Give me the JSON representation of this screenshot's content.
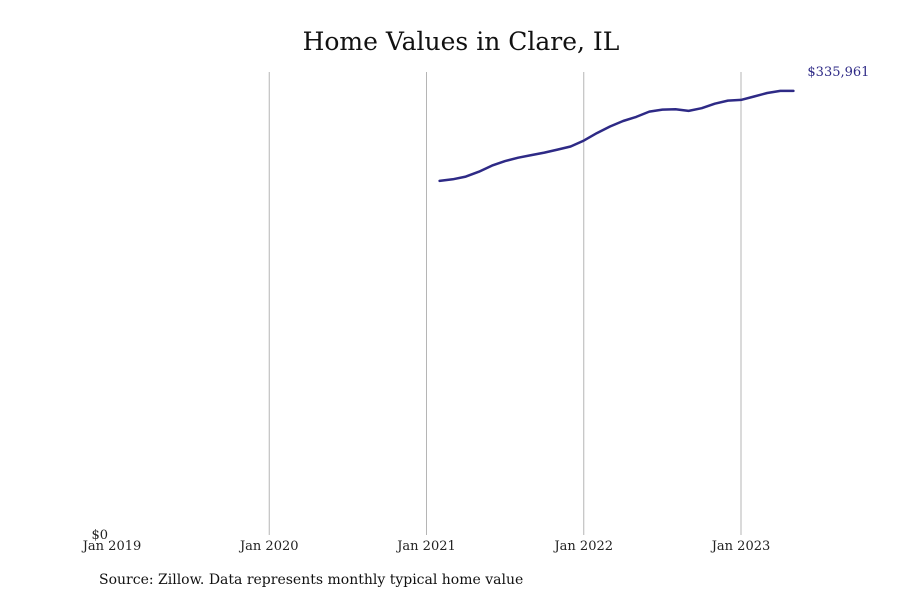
{
  "chart_data": {
    "type": "line",
    "title": "Home Values in Clare, IL",
    "xlabel": "",
    "ylabel": "",
    "x_ticks": [
      "Jan 2019",
      "Jan 2020",
      "Jan 2021",
      "Jan 2022",
      "Jan 2023"
    ],
    "y_ticks": [
      "$0"
    ],
    "xlim": [
      "2019-01",
      "2023-07"
    ],
    "ylim": [
      0,
      340000
    ],
    "grid": "vertical",
    "line_color": "#2e2a86",
    "end_label": "$335,961",
    "series": [
      {
        "x": [
          "2021-02",
          "2021-03",
          "2021-04",
          "2021-05",
          "2021-06",
          "2021-07",
          "2021-08",
          "2021-09",
          "2021-10",
          "2021-11",
          "2021-12",
          "2022-01",
          "2022-02",
          "2022-03",
          "2022-04",
          "2022-05",
          "2022-06",
          "2022-07",
          "2022-08",
          "2022-09",
          "2022-10",
          "2022-11",
          "2022-12",
          "2023-01",
          "2023-02",
          "2023-03",
          "2023-04",
          "2023-05"
        ],
        "values": [
          260000,
          261200,
          263200,
          266800,
          271300,
          274600,
          277100,
          279000,
          280800,
          283000,
          285300,
          289600,
          295100,
          300000,
          304000,
          307000,
          310900,
          312400,
          312700,
          311400,
          313400,
          316700,
          319000,
          319500,
          322000,
          324600,
          326100,
          326100
        ]
      }
    ]
  },
  "source": "Source: Zillow. Data represents monthly typical home value"
}
